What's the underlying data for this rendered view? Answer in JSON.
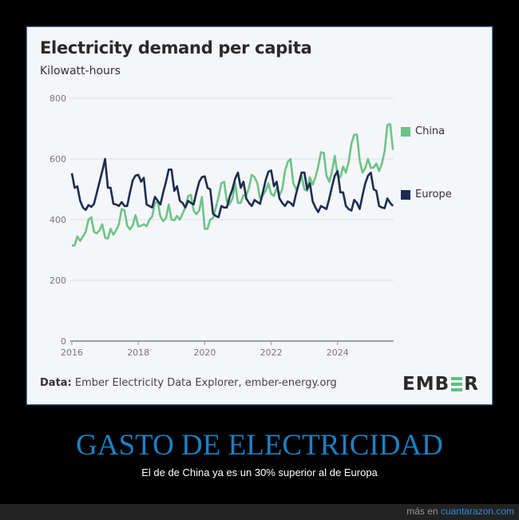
{
  "chart_data": {
    "type": "line",
    "title": "Electricity demand per capita",
    "subtitle": "Kilowatt-hours",
    "ylim": [
      0,
      800
    ],
    "yticks": [
      "0",
      "200",
      "400",
      "600",
      "800"
    ],
    "xticks": [
      "2016",
      "2018",
      "2020",
      "2022",
      "2024"
    ],
    "x_start": "2016-01",
    "x_frequency": "monthly",
    "grid": true,
    "legend_position": "right",
    "series": [
      {
        "name": "China",
        "color": "#6cc486",
        "values": [
          315,
          315,
          345,
          330,
          345,
          360,
          400,
          408,
          360,
          355,
          365,
          385,
          340,
          338,
          370,
          350,
          365,
          385,
          435,
          430,
          380,
          368,
          382,
          415,
          378,
          380,
          385,
          378,
          400,
          410,
          455,
          460,
          410,
          395,
          405,
          450,
          400,
          398,
          412,
          400,
          420,
          440,
          478,
          482,
          430,
          418,
          430,
          475,
          370,
          370,
          400,
          405,
          440,
          475,
          520,
          525,
          460,
          450,
          470,
          520,
          455,
          455,
          480,
          480,
          505,
          548,
          540,
          520,
          470,
          480,
          495,
          520,
          485,
          478,
          505,
          480,
          500,
          560,
          590,
          600,
          520,
          500,
          515,
          545,
          500,
          495,
          540,
          515,
          540,
          575,
          622,
          620,
          545,
          525,
          560,
          610,
          545,
          540,
          575,
          555,
          590,
          650,
          680,
          680,
          595,
          555,
          570,
          600,
          570,
          572,
          585,
          560,
          585,
          625,
          712,
          715,
          630
        ]
      },
      {
        "name": "Europe",
        "color": "#1e2b52",
        "values": [
          553,
          505,
          510,
          462,
          440,
          432,
          448,
          442,
          452,
          488,
          525,
          560,
          600,
          505,
          505,
          452,
          450,
          445,
          458,
          445,
          445,
          490,
          530,
          545,
          548,
          525,
          538,
          450,
          445,
          440,
          475,
          462,
          450,
          490,
          525,
          565,
          565,
          495,
          510,
          462,
          455,
          440,
          462,
          455,
          450,
          490,
          525,
          540,
          543,
          505,
          500,
          420,
          412,
          408,
          445,
          440,
          440,
          475,
          500,
          535,
          555,
          505,
          525,
          470,
          455,
          445,
          465,
          458,
          452,
          490,
          530,
          558,
          562,
          510,
          525,
          470,
          455,
          445,
          460,
          455,
          445,
          485,
          520,
          555,
          555,
          500,
          520,
          460,
          440,
          425,
          445,
          440,
          435,
          470,
          510,
          545,
          560,
          490,
          490,
          445,
          435,
          430,
          465,
          455,
          435,
          480,
          520,
          545,
          555,
          500,
          495,
          445,
          440,
          438,
          470,
          455,
          445
        ]
      }
    ]
  },
  "source": {
    "label": "Data:",
    "text": "Ember Electricity Data Explorer, ember-energy.org"
  },
  "logo": {
    "text": "EMBER"
  },
  "post": {
    "headline": "GASTO DE ELECTRICIDAD",
    "caption": "El de de China ya es un 30% superior al de Europa"
  },
  "footer": {
    "prefix": "más en",
    "site": "cuantarazon.com"
  }
}
